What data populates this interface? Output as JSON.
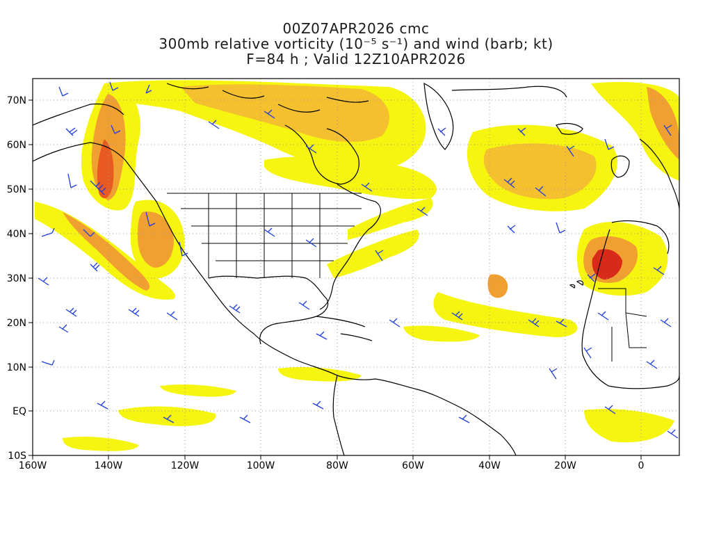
{
  "title": {
    "line1": "00Z07APR2026 cmc",
    "line2": "300mb relative vorticity (10⁻⁵ s⁻¹) and wind (barb; kt)",
    "line3": "F=84 h ; Valid 12Z10APR2026"
  },
  "axes": {
    "lat_labels": [
      "70N",
      "60N",
      "50N",
      "40N",
      "30N",
      "20N",
      "10N",
      "EQ",
      "10S"
    ],
    "lon_labels": [
      "160W",
      "140W",
      "120W",
      "100W",
      "80W",
      "60W",
      "40W",
      "20W",
      "0"
    ],
    "lat_range": [
      -10,
      75
    ],
    "lon_range": [
      -160,
      10
    ],
    "grid": "dotted gray"
  },
  "colors": {
    "vort_low": "#f5f50f",
    "vort_light": "#f2e63a",
    "vort_mid": "#f5c030",
    "vort_orange": "#f0a030",
    "vort_high": "#e85a20",
    "vort_max": "#d82a18",
    "barb": "#1e3cdc",
    "coast": "#000000",
    "grid": "#999999"
  }
}
